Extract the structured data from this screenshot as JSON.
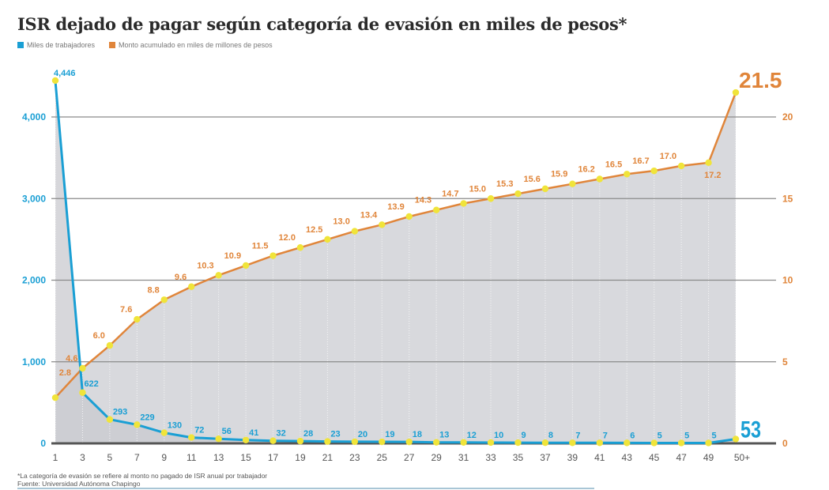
{
  "title": "ISR dejado de pagar según categoría de evasión en miles de pesos*",
  "footnote": "*La categoría de evasión se refiere al monto no pagado de ISR anual por trabajador",
  "source": "Fuente: Universidad Autónoma Chapingo",
  "colors": {
    "blue": "#1a9fd4",
    "orange": "#e0853a",
    "dot": "#f0e43a",
    "area": "#d8d9dd",
    "area_dark": "#c9cacf",
    "grid": "#8a8a8a",
    "axis": "#555555"
  },
  "chart_data": {
    "type": "line",
    "title": "ISR dejado de pagar según categoría de evasión en miles de pesos*",
    "xlabel": "",
    "categories": [
      "1",
      "3",
      "5",
      "7",
      "9",
      "11",
      "13",
      "15",
      "17",
      "19",
      "21",
      "23",
      "25",
      "27",
      "29",
      "31",
      "33",
      "35",
      "37",
      "39",
      "41",
      "43",
      "45",
      "47",
      "49",
      "50+"
    ],
    "legend_position": "top-left",
    "grid": true,
    "series": [
      {
        "name": "Miles de trabajadores",
        "axis": "left",
        "color": "#1a9fd4",
        "values": [
          4446,
          622,
          293,
          229,
          130,
          72,
          56,
          41,
          32,
          28,
          23,
          20,
          19,
          18,
          13,
          12,
          10,
          9,
          8,
          7,
          7,
          6,
          5,
          5,
          5,
          53
        ],
        "labels": [
          "4,446",
          "622",
          "293",
          "229",
          "130",
          "72",
          "56",
          "41",
          "32",
          "28",
          "23",
          "20",
          "19",
          "18",
          "13",
          "12",
          "10",
          "9",
          "8",
          "7",
          "7",
          "6",
          "5",
          "5",
          "5",
          "53"
        ]
      },
      {
        "name": "Monto acumulado en miles de millones de pesos",
        "axis": "right",
        "color": "#e0853a",
        "values": [
          2.8,
          4.6,
          6.0,
          7.6,
          8.8,
          9.6,
          10.3,
          10.9,
          11.5,
          12.0,
          12.5,
          13.0,
          13.4,
          13.9,
          14.3,
          14.7,
          15.0,
          15.3,
          15.6,
          15.9,
          16.2,
          16.5,
          16.7,
          17.0,
          17.2,
          21.5
        ],
        "labels": [
          "2.8",
          "4.6",
          "6.0",
          "7.6",
          "8.8",
          "9.6",
          "10.3",
          "10.9",
          "11.5",
          "12.0",
          "12.5",
          "13.0",
          "13.4",
          "13.9",
          "14.3",
          "14.7",
          "15.0",
          "15.3",
          "15.6",
          "15.9",
          "16.2",
          "16.5",
          "16.7",
          "17.0",
          "17.2",
          "21.5"
        ]
      }
    ],
    "y_left": {
      "ylim": [
        0,
        4000
      ],
      "ticks": [
        0,
        1000,
        2000,
        3000,
        4000
      ],
      "tick_labels": [
        "0",
        "1,000",
        "2,000",
        "3,000",
        "4,000"
      ]
    },
    "y_right": {
      "ylim": [
        0,
        20
      ],
      "ticks": [
        0,
        5,
        10,
        15,
        20
      ],
      "tick_labels": [
        "0",
        "5",
        "10",
        "15",
        "20"
      ]
    }
  }
}
